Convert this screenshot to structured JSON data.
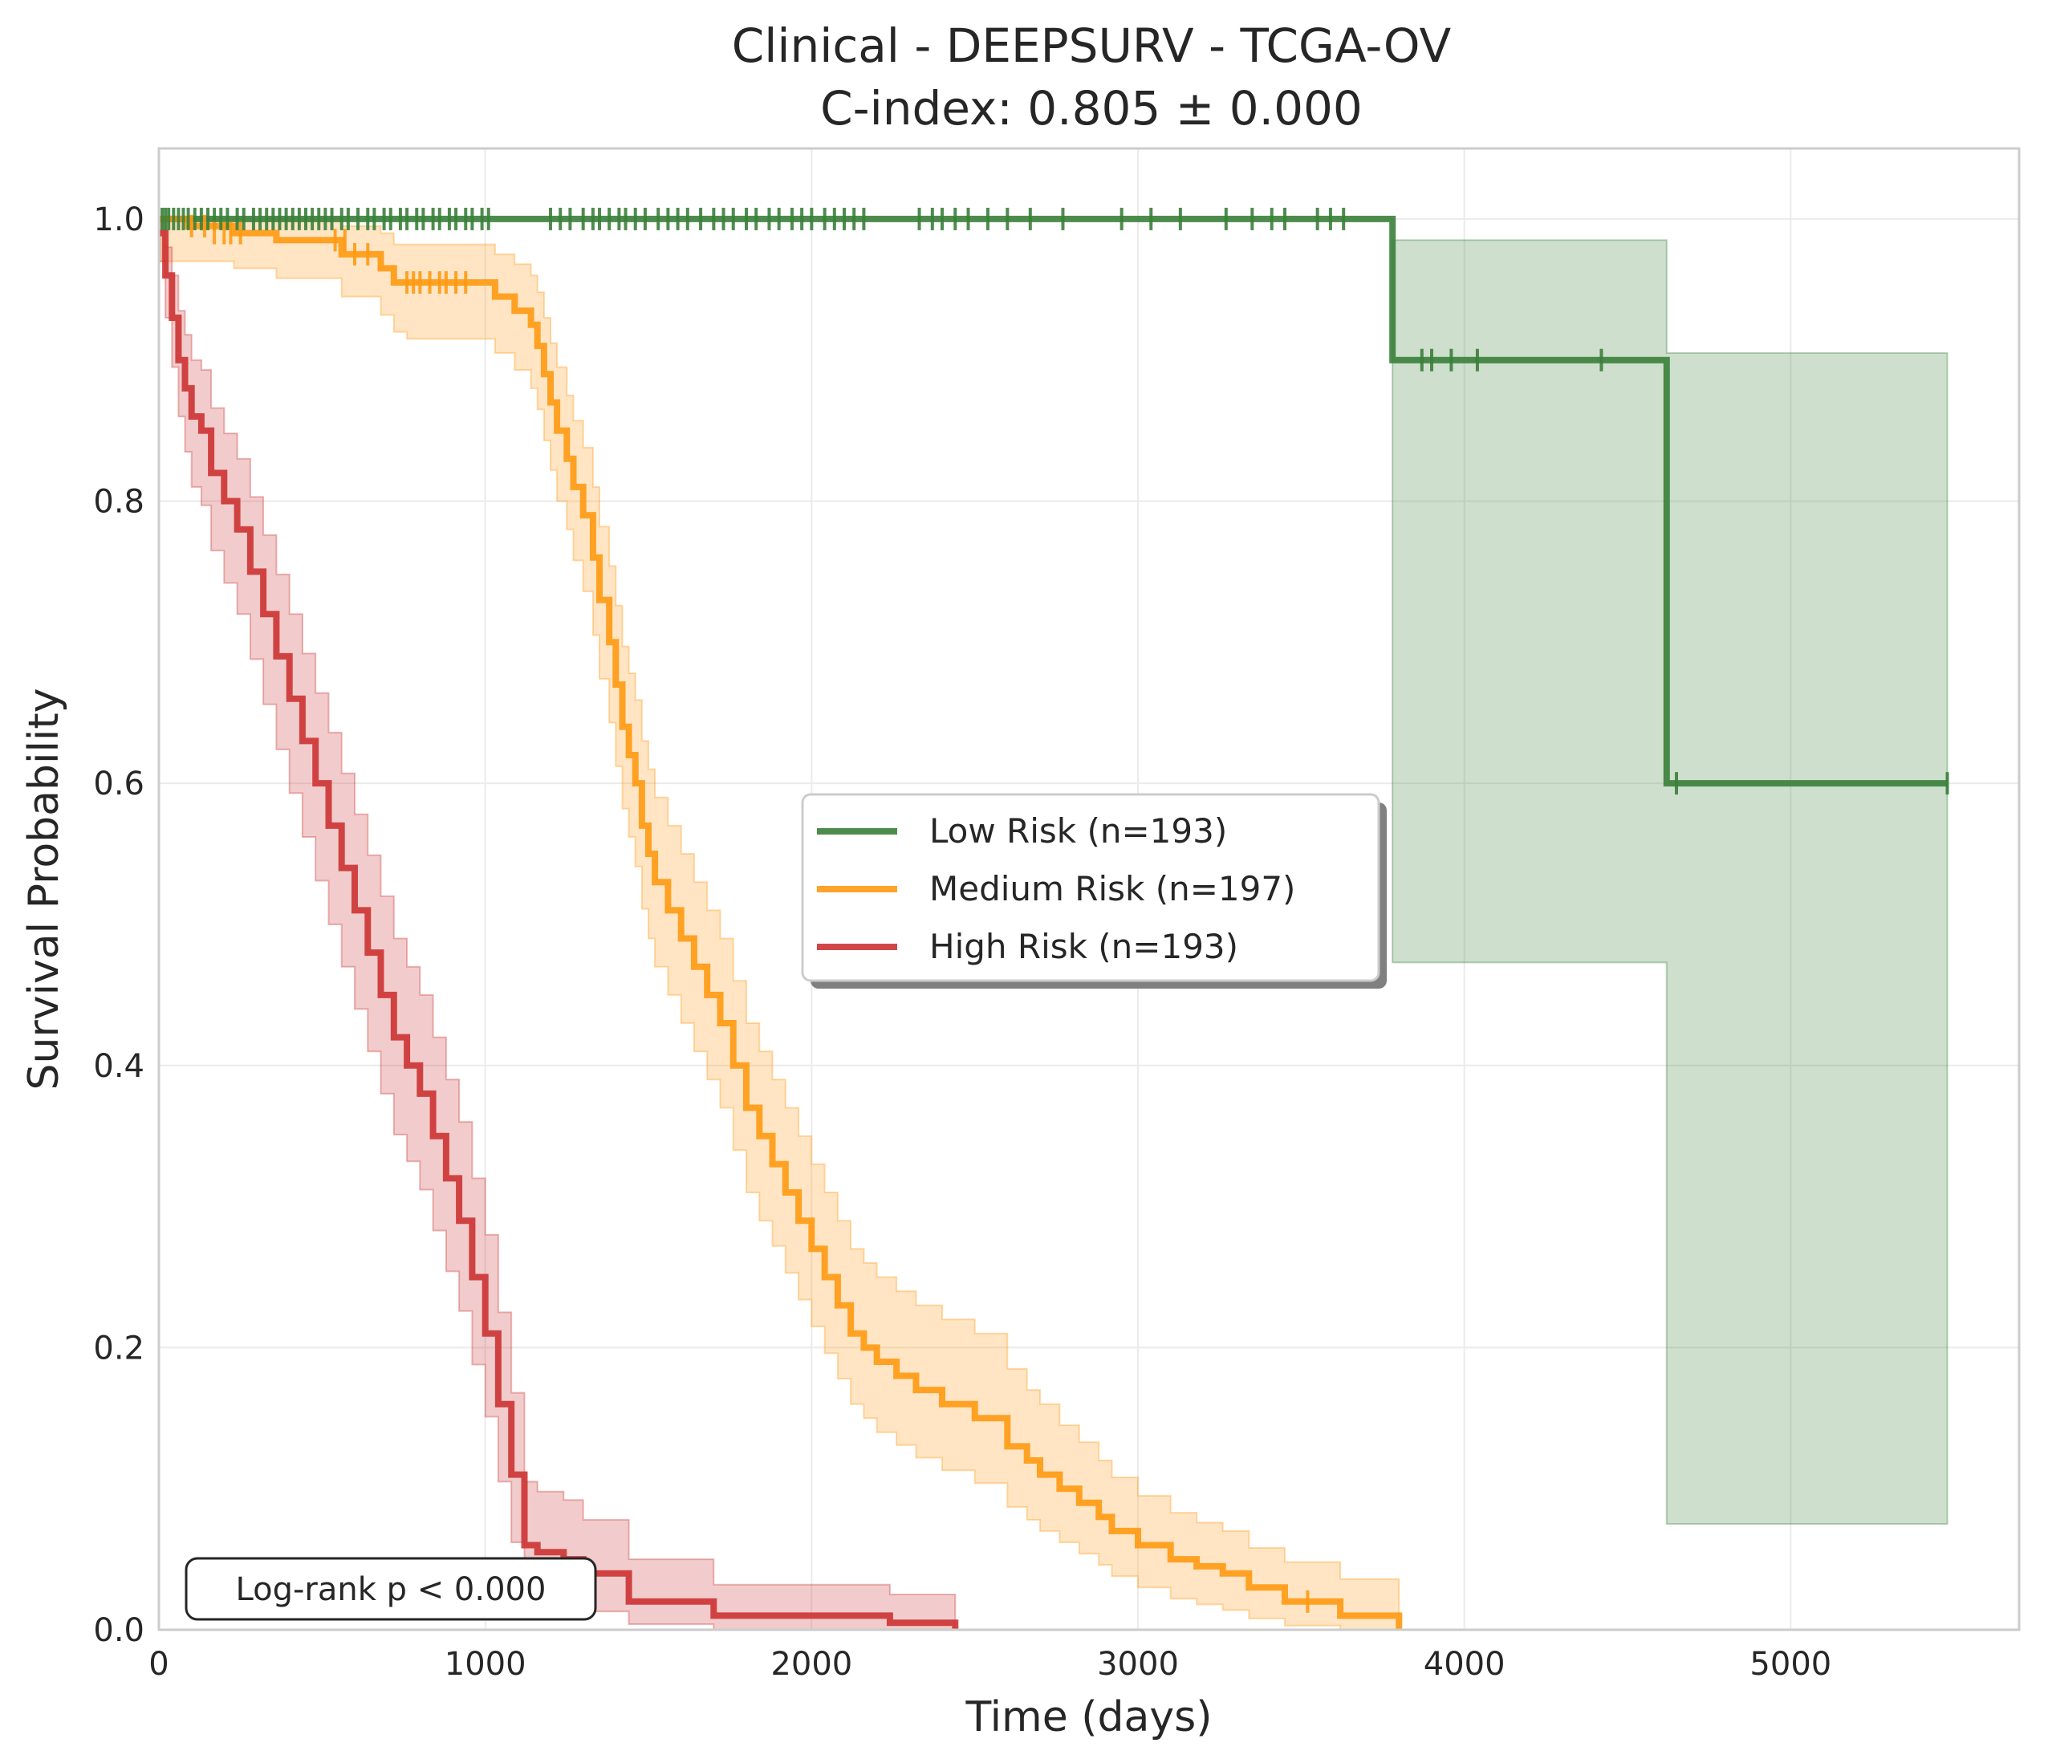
{
  "chart_data": {
    "type": "line",
    "subtype": "kaplan-meier",
    "title": "Clinical - DEEPSURV - TCGA-OV",
    "subtitle": "C-index: 0.805 ± 0.000",
    "xlabel": "Time (days)",
    "ylabel": "Survival Probability",
    "xlim": [
      0,
      5700
    ],
    "ylim": [
      0,
      1.05
    ],
    "xticks": [
      0,
      1000,
      2000,
      3000,
      4000,
      5000
    ],
    "xtick_labels": [
      "0",
      "1000",
      "2000",
      "3000",
      "4000",
      "5000"
    ],
    "yticks": [
      0,
      0.2,
      0.4,
      0.6,
      0.8,
      1.0
    ],
    "ytick_labels": [
      "0.0",
      "0.2",
      "0.4",
      "0.6",
      "0.8",
      "1.0"
    ],
    "grid": true,
    "legend_position": "center-right",
    "annotation": "Log-rank p < 0.000",
    "series": [
      {
        "name": "Low Risk (n=193)",
        "color": "#3a7f3a",
        "x": [
          0,
          3780,
          3780,
          4620,
          4620,
          5480
        ],
        "y": [
          1.0,
          1.0,
          0.9,
          0.9,
          0.6,
          0.6
        ],
        "ci_x": [
          3780,
          4620,
          4620,
          5480
        ],
        "ci_lower": [
          0.473,
          0.473,
          0.075,
          0.075
        ],
        "ci_upper": [
          0.985,
          0.985,
          0.905,
          0.905
        ],
        "censor_x": [
          10,
          20,
          30,
          45,
          60,
          75,
          90,
          110,
          130,
          150,
          170,
          190,
          210,
          240,
          260,
          290,
          310,
          330,
          350,
          370,
          390,
          410,
          430,
          450,
          470,
          490,
          510,
          530,
          560,
          580,
          610,
          640,
          660,
          690,
          710,
          740,
          760,
          790,
          810,
          840,
          860,
          890,
          910,
          940,
          960,
          990,
          1010,
          1200,
          1230,
          1260,
          1300,
          1330,
          1350,
          1380,
          1410,
          1430,
          1460,
          1490,
          1530,
          1560,
          1590,
          1620,
          1660,
          1700,
          1730,
          1760,
          1800,
          1830,
          1870,
          1900,
          1940,
          1970,
          2000,
          2040,
          2070,
          2100,
          2130,
          2160,
          2330,
          2370,
          2400,
          2440,
          2480,
          2540,
          2600,
          2670,
          2770,
          2950,
          3040,
          3130,
          3270,
          3350,
          3410,
          3450,
          3550,
          3590,
          3630,
          3870,
          3900,
          3960,
          4040,
          4420,
          4650,
          5480
        ],
        "censor_y": [
          1.0,
          1.0,
          1.0,
          1.0,
          1.0,
          1.0,
          1.0,
          1.0,
          1.0,
          1.0,
          1.0,
          1.0,
          1.0,
          1.0,
          1.0,
          1.0,
          1.0,
          1.0,
          1.0,
          1.0,
          1.0,
          1.0,
          1.0,
          1.0,
          1.0,
          1.0,
          1.0,
          1.0,
          1.0,
          1.0,
          1.0,
          1.0,
          1.0,
          1.0,
          1.0,
          1.0,
          1.0,
          1.0,
          1.0,
          1.0,
          1.0,
          1.0,
          1.0,
          1.0,
          1.0,
          1.0,
          1.0,
          1.0,
          1.0,
          1.0,
          1.0,
          1.0,
          1.0,
          1.0,
          1.0,
          1.0,
          1.0,
          1.0,
          1.0,
          1.0,
          1.0,
          1.0,
          1.0,
          1.0,
          1.0,
          1.0,
          1.0,
          1.0,
          1.0,
          1.0,
          1.0,
          1.0,
          1.0,
          1.0,
          1.0,
          1.0,
          1.0,
          1.0,
          1.0,
          1.0,
          1.0,
          1.0,
          1.0,
          1.0,
          1.0,
          1.0,
          1.0,
          1.0,
          1.0,
          1.0,
          1.0,
          1.0,
          1.0,
          1.0,
          1.0,
          1.0,
          1.0,
          0.9,
          0.9,
          0.9,
          0.9,
          0.9,
          0.6,
          0.6
        ]
      },
      {
        "name": "Medium Risk (n=197)",
        "color": "#ff9912",
        "x": [
          0,
          90,
          230,
          360,
          560,
          680,
          720,
          760,
          1030,
          1090,
          1140,
          1160,
          1180,
          1200,
          1220,
          1250,
          1270,
          1300,
          1330,
          1350,
          1380,
          1400,
          1420,
          1440,
          1460,
          1480,
          1500,
          1520,
          1560,
          1600,
          1640,
          1680,
          1720,
          1760,
          1800,
          1840,
          1880,
          1920,
          1960,
          2000,
          2040,
          2080,
          2120,
          2160,
          2200,
          2260,
          2320,
          2400,
          2500,
          2600,
          2660,
          2700,
          2760,
          2820,
          2880,
          2920,
          3000,
          3100,
          3180,
          3260,
          3340,
          3450,
          3620,
          3800
        ],
        "y": [
          1.0,
          0.995,
          0.99,
          0.985,
          0.975,
          0.965,
          0.955,
          0.955,
          0.945,
          0.935,
          0.925,
          0.91,
          0.89,
          0.87,
          0.85,
          0.83,
          0.81,
          0.79,
          0.76,
          0.73,
          0.7,
          0.67,
          0.64,
          0.62,
          0.6,
          0.57,
          0.55,
          0.53,
          0.51,
          0.49,
          0.47,
          0.45,
          0.43,
          0.4,
          0.37,
          0.35,
          0.33,
          0.31,
          0.29,
          0.27,
          0.25,
          0.23,
          0.21,
          0.2,
          0.19,
          0.18,
          0.17,
          0.16,
          0.15,
          0.13,
          0.12,
          0.11,
          0.1,
          0.09,
          0.08,
          0.07,
          0.06,
          0.05,
          0.045,
          0.04,
          0.03,
          0.02,
          0.01,
          0.0
        ],
        "ci_x": [
          0,
          90,
          230,
          360,
          560,
          680,
          720,
          760,
          1030,
          1090,
          1140,
          1160,
          1180,
          1200,
          1220,
          1250,
          1270,
          1300,
          1330,
          1350,
          1380,
          1400,
          1420,
          1440,
          1460,
          1480,
          1500,
          1520,
          1560,
          1600,
          1640,
          1680,
          1720,
          1760,
          1800,
          1840,
          1880,
          1920,
          1960,
          2000,
          2040,
          2080,
          2120,
          2160,
          2200,
          2260,
          2320,
          2400,
          2500,
          2600,
          2660,
          2700,
          2760,
          2820,
          2880,
          2920,
          3000,
          3100,
          3180,
          3260,
          3340,
          3450,
          3620,
          3800
        ],
        "ci_lower": [
          0.97,
          0.97,
          0.965,
          0.958,
          0.945,
          0.932,
          0.92,
          0.915,
          0.905,
          0.893,
          0.88,
          0.865,
          0.843,
          0.822,
          0.8,
          0.78,
          0.758,
          0.736,
          0.705,
          0.674,
          0.643,
          0.612,
          0.582,
          0.562,
          0.541,
          0.511,
          0.49,
          0.47,
          0.45,
          0.43,
          0.41,
          0.39,
          0.37,
          0.34,
          0.31,
          0.29,
          0.272,
          0.253,
          0.234,
          0.215,
          0.196,
          0.178,
          0.16,
          0.15,
          0.14,
          0.131,
          0.122,
          0.113,
          0.104,
          0.087,
          0.078,
          0.07,
          0.062,
          0.054,
          0.046,
          0.038,
          0.03,
          0.022,
          0.018,
          0.014,
          0.008,
          0.003,
          0.0,
          0.0
        ],
        "ci_upper": [
          1.0,
          1.0,
          1.0,
          1.0,
          0.995,
          0.99,
          0.982,
          0.982,
          0.975,
          0.968,
          0.96,
          0.948,
          0.93,
          0.912,
          0.895,
          0.875,
          0.857,
          0.838,
          0.81,
          0.782,
          0.754,
          0.726,
          0.697,
          0.678,
          0.659,
          0.63,
          0.61,
          0.59,
          0.57,
          0.55,
          0.53,
          0.51,
          0.49,
          0.46,
          0.43,
          0.41,
          0.39,
          0.37,
          0.35,
          0.33,
          0.31,
          0.29,
          0.27,
          0.26,
          0.25,
          0.24,
          0.23,
          0.22,
          0.21,
          0.185,
          0.17,
          0.16,
          0.145,
          0.133,
          0.12,
          0.108,
          0.095,
          0.083,
          0.076,
          0.07,
          0.058,
          0.048,
          0.036,
          0.0
        ],
        "censor_x": [
          100,
          140,
          170,
          200,
          220,
          250,
          540,
          570,
          600,
          640,
          760,
          780,
          800,
          830,
          860,
          880,
          910,
          940,
          3520
        ],
        "censor_y": [
          0.995,
          0.995,
          0.99,
          0.99,
          0.99,
          0.99,
          0.985,
          0.985,
          0.975,
          0.975,
          0.955,
          0.955,
          0.955,
          0.955,
          0.955,
          0.955,
          0.955,
          0.955,
          0.02
        ]
      },
      {
        "name": "High Risk (n=193)",
        "color": "#cc3333",
        "x": [
          0,
          20,
          40,
          60,
          80,
          100,
          130,
          160,
          200,
          240,
          280,
          320,
          360,
          400,
          440,
          480,
          520,
          560,
          600,
          640,
          680,
          720,
          760,
          800,
          840,
          880,
          920,
          960,
          1000,
          1040,
          1080,
          1120,
          1160,
          1240,
          1300,
          1440,
          1700,
          2240,
          2440
        ],
        "y": [
          0.99,
          0.96,
          0.93,
          0.9,
          0.88,
          0.86,
          0.85,
          0.82,
          0.8,
          0.78,
          0.75,
          0.72,
          0.69,
          0.66,
          0.63,
          0.6,
          0.57,
          0.54,
          0.51,
          0.48,
          0.45,
          0.42,
          0.4,
          0.38,
          0.35,
          0.32,
          0.29,
          0.25,
          0.21,
          0.16,
          0.11,
          0.06,
          0.055,
          0.05,
          0.04,
          0.02,
          0.01,
          0.005,
          0.0
        ],
        "ci_x": [
          0,
          20,
          40,
          60,
          80,
          100,
          130,
          160,
          200,
          240,
          280,
          320,
          360,
          400,
          440,
          480,
          520,
          560,
          600,
          640,
          680,
          720,
          760,
          800,
          840,
          880,
          920,
          960,
          1000,
          1040,
          1080,
          1120,
          1160,
          1240,
          1300,
          1440,
          1700,
          2240,
          2440
        ],
        "ci_lower": [
          0.97,
          0.93,
          0.895,
          0.86,
          0.835,
          0.81,
          0.797,
          0.765,
          0.742,
          0.72,
          0.688,
          0.656,
          0.624,
          0.593,
          0.562,
          0.531,
          0.5,
          0.47,
          0.44,
          0.41,
          0.38,
          0.351,
          0.332,
          0.312,
          0.283,
          0.254,
          0.226,
          0.188,
          0.151,
          0.105,
          0.062,
          0.025,
          0.022,
          0.019,
          0.013,
          0.004,
          0.0,
          0.0,
          0.0
        ],
        "ci_upper": [
          1.0,
          0.98,
          0.96,
          0.935,
          0.918,
          0.9,
          0.893,
          0.866,
          0.848,
          0.83,
          0.803,
          0.776,
          0.748,
          0.72,
          0.692,
          0.664,
          0.636,
          0.607,
          0.578,
          0.549,
          0.52,
          0.49,
          0.47,
          0.45,
          0.42,
          0.39,
          0.36,
          0.32,
          0.28,
          0.225,
          0.168,
          0.105,
          0.098,
          0.092,
          0.078,
          0.05,
          0.032,
          0.025,
          0.0
        ],
        "censor_x": [],
        "censor_y": []
      }
    ]
  }
}
